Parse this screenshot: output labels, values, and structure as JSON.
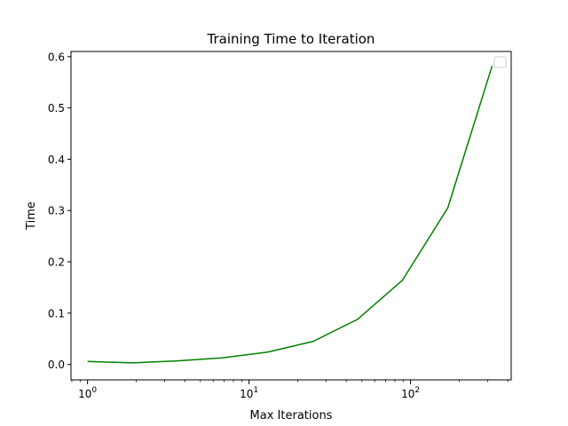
{
  "chart_data": {
    "type": "line",
    "title": "Training Time to Iteration",
    "xlabel": "Max Iterations",
    "ylabel": "Time",
    "xscale": "log",
    "xlim": [
      0.79,
      420
    ],
    "ylim": [
      -0.03,
      0.61
    ],
    "xticks": [
      {
        "value": 1,
        "base": "10",
        "exp": "0"
      },
      {
        "value": 10,
        "base": "10",
        "exp": "1"
      },
      {
        "value": 100,
        "base": "10",
        "exp": "2"
      }
    ],
    "yticks": [
      {
        "value": 0.0,
        "label": "0.0"
      },
      {
        "value": 0.1,
        "label": "0.1"
      },
      {
        "value": 0.2,
        "label": "0.2"
      },
      {
        "value": 0.3,
        "label": "0.3"
      },
      {
        "value": 0.4,
        "label": "0.4"
      },
      {
        "value": 0.5,
        "label": "0.5"
      },
      {
        "value": 0.6,
        "label": "0.6"
      }
    ],
    "grid": false,
    "legend": {
      "placement": "top-right",
      "entries": []
    },
    "series": [
      {
        "color": "#008000",
        "x": [
          1,
          1.9,
          3.6,
          6.9,
          13,
          25,
          47,
          89,
          170,
          320
        ],
        "y": [
          0.006,
          0.003,
          0.007,
          0.013,
          0.024,
          0.045,
          0.088,
          0.164,
          0.305,
          0.582
        ]
      }
    ]
  }
}
